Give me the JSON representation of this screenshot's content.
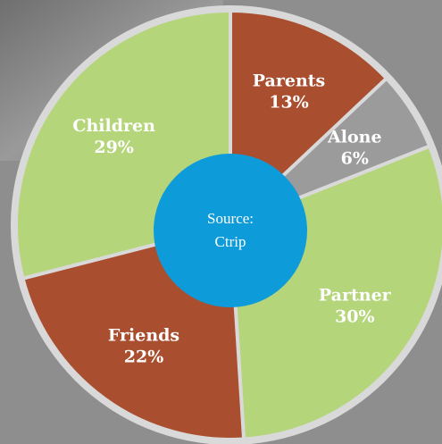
{
  "chart_data": {
    "type": "pie",
    "categories": [
      "Parents",
      "Alone",
      "Partner",
      "Friends",
      "Children"
    ],
    "values": [
      13,
      6,
      30,
      22,
      29
    ],
    "value_labels": [
      "13%",
      "6%",
      "30%",
      "22%",
      "29%"
    ],
    "colors": [
      "#a94f2f",
      "#9b9b9b",
      "#b5d57a",
      "#a94f2f",
      "#b5d57a"
    ],
    "annotations": [
      "Source:",
      "Ctrip"
    ]
  }
}
